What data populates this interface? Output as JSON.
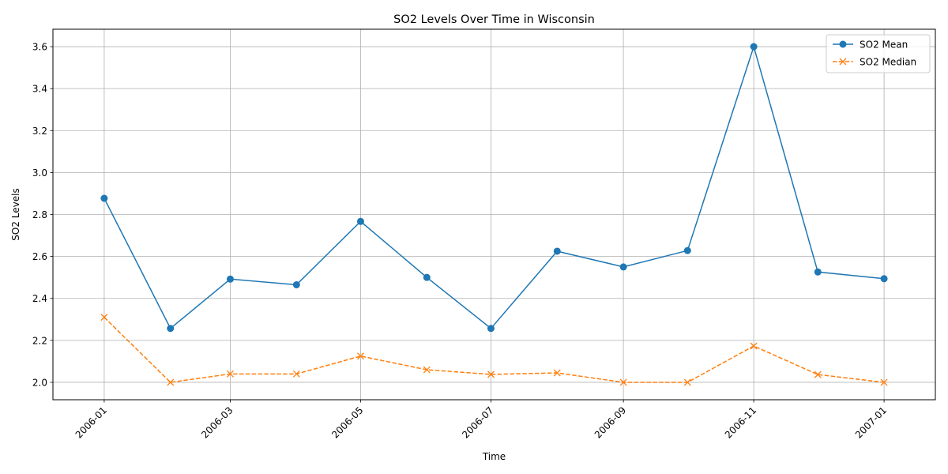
{
  "chart_data": {
    "type": "line",
    "title": "SO2 Levels Over Time in Wisconsin",
    "xlabel": "Time",
    "ylabel": "SO2 Levels",
    "x": [
      "2006-01-01",
      "2006-02-01",
      "2006-03-01",
      "2006-04-01",
      "2006-05-01",
      "2006-06-01",
      "2006-07-01",
      "2006-08-01",
      "2006-09-01",
      "2006-10-01",
      "2006-11-01",
      "2006-12-01",
      "2007-01-01"
    ],
    "xlim": [
      "2005-12-08",
      "2007-01-25"
    ],
    "ylim": [
      1.917,
      3.683
    ],
    "x_ticks": [
      "2006-01",
      "2006-03",
      "2006-05",
      "2006-07",
      "2006-09",
      "2006-11",
      "2007-01"
    ],
    "y_ticks": [
      "2.0",
      "2.2",
      "2.4",
      "2.6",
      "2.8",
      "3.0",
      "3.2",
      "3.4",
      "3.6"
    ],
    "grid": true,
    "legend_position": "top-right",
    "series": [
      {
        "name": "SO2 Mean",
        "color": "#1f77b4",
        "marker": "circle",
        "line_style": "solid",
        "values": [
          2.877,
          2.257,
          2.492,
          2.465,
          2.767,
          2.5,
          2.257,
          2.625,
          2.55,
          2.628,
          3.6,
          2.526,
          2.494
        ]
      },
      {
        "name": "SO2 Median",
        "color": "#ff7f0e",
        "marker": "x",
        "line_style": "dashed",
        "values": [
          2.31,
          2.0,
          2.04,
          2.04,
          2.125,
          2.06,
          2.038,
          2.045,
          2.0,
          2.0,
          2.173,
          2.037,
          2.0
        ]
      }
    ]
  }
}
